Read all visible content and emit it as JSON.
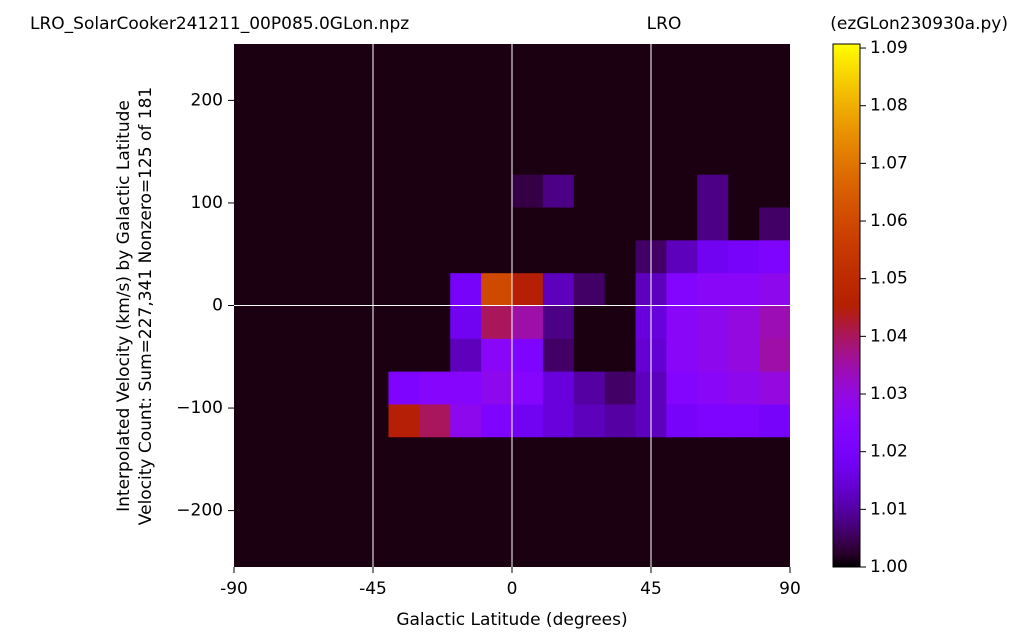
{
  "chart_data": {
    "type": "heatmap",
    "title": "LRO_SolarCooker241211_00P085.0GLon.npz",
    "title_center": "LRO",
    "title_right": "(ezGLon230930a.py)",
    "xlabel": "Galactic Latitude (degrees)",
    "ylabel": [
      "Interpolated Velocity (km/s) by Galactic Latitude",
      "Velocity Count: Sum=227,341 Nonzero=125 of 181"
    ],
    "colormap": "gnuplot",
    "xlim": [
      -90,
      90
    ],
    "ylim": [
      -255,
      255
    ],
    "xticks": [
      -90,
      -45,
      0,
      45,
      90
    ],
    "yticks": [
      {
        "value": -200,
        "label": "−200"
      },
      {
        "value": -100,
        "label": "−100"
      },
      0,
      100,
      200
    ],
    "vlines": [
      -45,
      0,
      45
    ],
    "hlines": [
      0
    ],
    "line_color": "#ffffff",
    "clim": [
      1.0,
      1.0907
    ],
    "cticks": [
      {
        "value": 1.0,
        "label": "1.00"
      },
      1.01,
      1.02,
      1.03,
      1.04,
      1.05,
      1.06,
      1.07,
      1.08,
      1.09
    ],
    "xbins": [
      -90,
      -80,
      -70,
      -60,
      -50,
      -40,
      -30,
      -20,
      -10,
      0,
      10,
      20,
      30,
      40,
      50,
      60,
      70,
      80,
      90
    ],
    "ybins": [
      -256,
      -224,
      -192,
      -160,
      -128,
      -96,
      -64,
      -32,
      0,
      32,
      64,
      96,
      128,
      160,
      192,
      224,
      256
    ],
    "z": [
      [
        1.001,
        1.001,
        1.001,
        1.001,
        1.001,
        1.001,
        1.001,
        1.001,
        1.001,
        1.001,
        1.001,
        1.001,
        1.001,
        1.001,
        1.001,
        1.001,
        1.001,
        1.001
      ],
      [
        1.001,
        1.001,
        1.001,
        1.001,
        1.001,
        1.001,
        1.001,
        1.001,
        1.001,
        1.001,
        1.001,
        1.001,
        1.001,
        1.001,
        1.001,
        1.001,
        1.001,
        1.001
      ],
      [
        1.001,
        1.001,
        1.001,
        1.001,
        1.001,
        1.001,
        1.001,
        1.001,
        1.001,
        1.001,
        1.001,
        1.001,
        1.001,
        1.001,
        1.001,
        1.001,
        1.001,
        1.001
      ],
      [
        1.001,
        1.001,
        1.001,
        1.001,
        1.001,
        1.001,
        1.001,
        1.001,
        1.001,
        1.001,
        1.001,
        1.001,
        1.001,
        1.001,
        1.001,
        1.001,
        1.001,
        1.001
      ],
      [
        1.001,
        1.001,
        1.001,
        1.001,
        1.001,
        1.045,
        1.04,
        1.028,
        1.022,
        1.018,
        1.015,
        1.012,
        1.01,
        1.012,
        1.02,
        1.022,
        1.022,
        1.02
      ],
      [
        1.001,
        1.001,
        1.001,
        1.001,
        1.001,
        1.022,
        1.025,
        1.025,
        1.028,
        1.025,
        1.015,
        1.01,
        1.006,
        1.012,
        1.024,
        1.026,
        1.028,
        1.03
      ],
      [
        1.001,
        1.001,
        1.001,
        1.001,
        1.001,
        1.001,
        1.001,
        1.012,
        1.026,
        1.022,
        1.006,
        1.001,
        1.001,
        1.014,
        1.026,
        1.028,
        1.03,
        1.035
      ],
      [
        1.001,
        1.001,
        1.001,
        1.001,
        1.001,
        1.001,
        1.001,
        1.018,
        1.04,
        1.035,
        1.008,
        1.001,
        1.001,
        1.015,
        1.026,
        1.028,
        1.03,
        1.034
      ],
      [
        1.001,
        1.001,
        1.001,
        1.001,
        1.001,
        1.001,
        1.001,
        1.02,
        1.06,
        1.045,
        1.012,
        1.006,
        1.001,
        1.012,
        1.024,
        1.026,
        1.026,
        1.028
      ],
      [
        1.001,
        1.001,
        1.001,
        1.001,
        1.001,
        1.001,
        1.001,
        1.001,
        1.001,
        1.001,
        1.001,
        1.001,
        1.001,
        1.006,
        1.012,
        1.018,
        1.02,
        1.022
      ],
      [
        1.001,
        1.001,
        1.001,
        1.001,
        1.001,
        1.001,
        1.001,
        1.001,
        1.001,
        1.001,
        1.001,
        1.001,
        1.001,
        1.001,
        1.001,
        1.008,
        1.001,
        1.006
      ],
      [
        1.001,
        1.001,
        1.001,
        1.001,
        1.001,
        1.001,
        1.001,
        1.001,
        1.001,
        1.004,
        1.008,
        1.001,
        1.001,
        1.001,
        1.001,
        1.008,
        1.001,
        1.001
      ],
      [
        1.001,
        1.001,
        1.001,
        1.001,
        1.001,
        1.001,
        1.001,
        1.001,
        1.001,
        1.001,
        1.001,
        1.001,
        1.001,
        1.001,
        1.001,
        1.001,
        1.001,
        1.001
      ],
      [
        1.001,
        1.001,
        1.001,
        1.001,
        1.001,
        1.001,
        1.001,
        1.001,
        1.001,
        1.001,
        1.001,
        1.001,
        1.001,
        1.001,
        1.001,
        1.001,
        1.001,
        1.001
      ],
      [
        1.001,
        1.001,
        1.001,
        1.001,
        1.001,
        1.001,
        1.001,
        1.001,
        1.001,
        1.001,
        1.001,
        1.001,
        1.001,
        1.001,
        1.001,
        1.001,
        1.001,
        1.001
      ],
      [
        1.001,
        1.001,
        1.001,
        1.001,
        1.001,
        1.001,
        1.001,
        1.001,
        1.001,
        1.001,
        1.001,
        1.001,
        1.001,
        1.001,
        1.001,
        1.001,
        1.001,
        1.001
      ]
    ]
  }
}
